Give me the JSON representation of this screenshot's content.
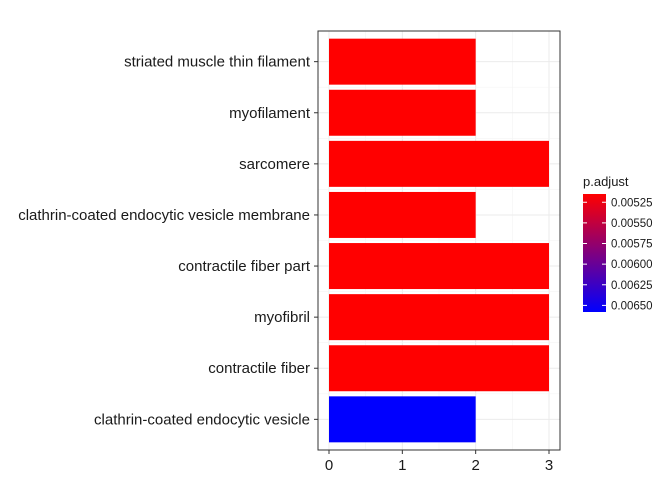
{
  "chart_data": {
    "type": "bar",
    "orientation": "horizontal",
    "categories": [
      "striated muscle thin filament",
      "myofilament",
      "sarcomere",
      "clathrin-coated endocytic vesicle membrane",
      "contractile fiber part",
      "myofibril",
      "contractile fiber",
      "clathrin-coated endocytic vesicle"
    ],
    "values": [
      2,
      2,
      3,
      2,
      3,
      3,
      3,
      2
    ],
    "bar_colors": [
      "#FF0000",
      "#FF0000",
      "#FF0000",
      "#FF0000",
      "#FF0000",
      "#FF0000",
      "#FF0000",
      "#0000FF"
    ],
    "xlim": [
      -0.15,
      3.15
    ],
    "x_ticks": [
      0,
      1,
      2,
      3
    ],
    "grid": true,
    "legend": {
      "title": "p.adjust",
      "placement": "right",
      "gradient": {
        "low_color": "#FF0000",
        "high_color": "#0000FF"
      },
      "range": [
        0.00515,
        0.00658
      ],
      "ticks": [
        0.00525,
        0.0055,
        0.00575,
        0.006,
        0.00625,
        0.0065
      ],
      "tick_labels": [
        "0.00525",
        "0.00550",
        "0.00575",
        "0.00600",
        "0.00625",
        "0.00650"
      ]
    }
  }
}
